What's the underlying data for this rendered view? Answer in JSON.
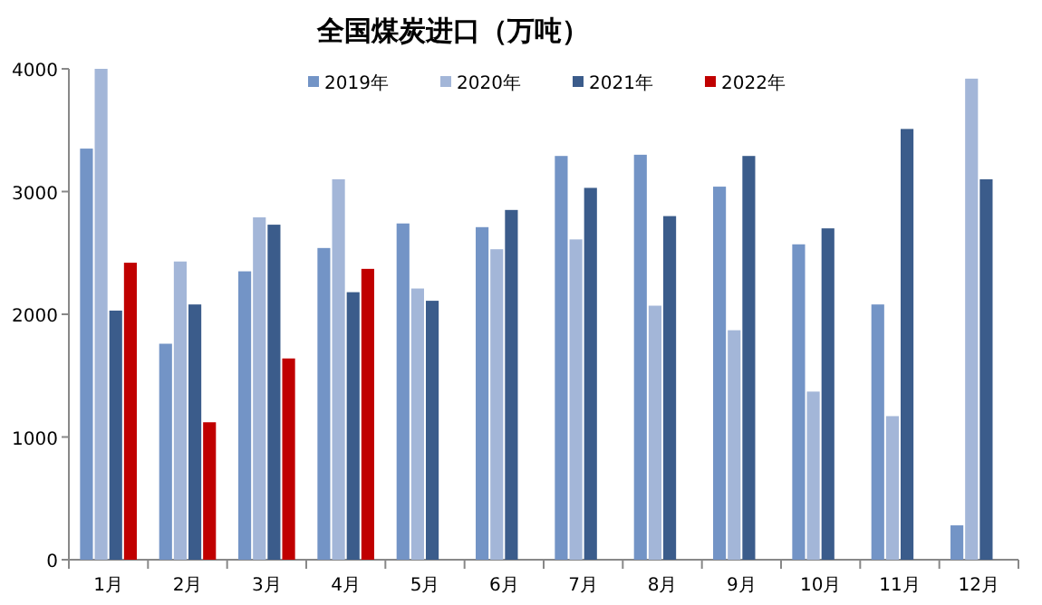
{
  "chart_data": {
    "type": "bar",
    "title": "全国煤炭进口（万吨）",
    "categories": [
      "1月",
      "2月",
      "3月",
      "4月",
      "5月",
      "6月",
      "7月",
      "8月",
      "9月",
      "10月",
      "11月",
      "12月"
    ],
    "series": [
      {
        "name": "2019年",
        "color": "#7394c6",
        "values": [
          3350,
          1760,
          2350,
          2540,
          2740,
          2710,
          3290,
          3300,
          3040,
          2570,
          2080,
          280
        ]
      },
      {
        "name": "2020年",
        "color": "#a3b6d8",
        "values": [
          4000,
          2430,
          2790,
          3100,
          2210,
          2530,
          2610,
          2070,
          1870,
          1370,
          1170,
          3920
        ]
      },
      {
        "name": "2021年",
        "color": "#3b5c8b",
        "values": [
          2030,
          2080,
          2730,
          2180,
          2110,
          2850,
          3030,
          2800,
          3290,
          2700,
          3510,
          3100
        ]
      },
      {
        "name": "2022年",
        "color": "#c00000",
        "values": [
          2420,
          1120,
          1640,
          2370,
          null,
          null,
          null,
          null,
          null,
          null,
          null,
          null
        ]
      }
    ],
    "ylim": [
      0,
      4000
    ],
    "yticks": [
      0,
      1000,
      2000,
      3000,
      4000
    ],
    "legend": "top",
    "grid": false
  }
}
